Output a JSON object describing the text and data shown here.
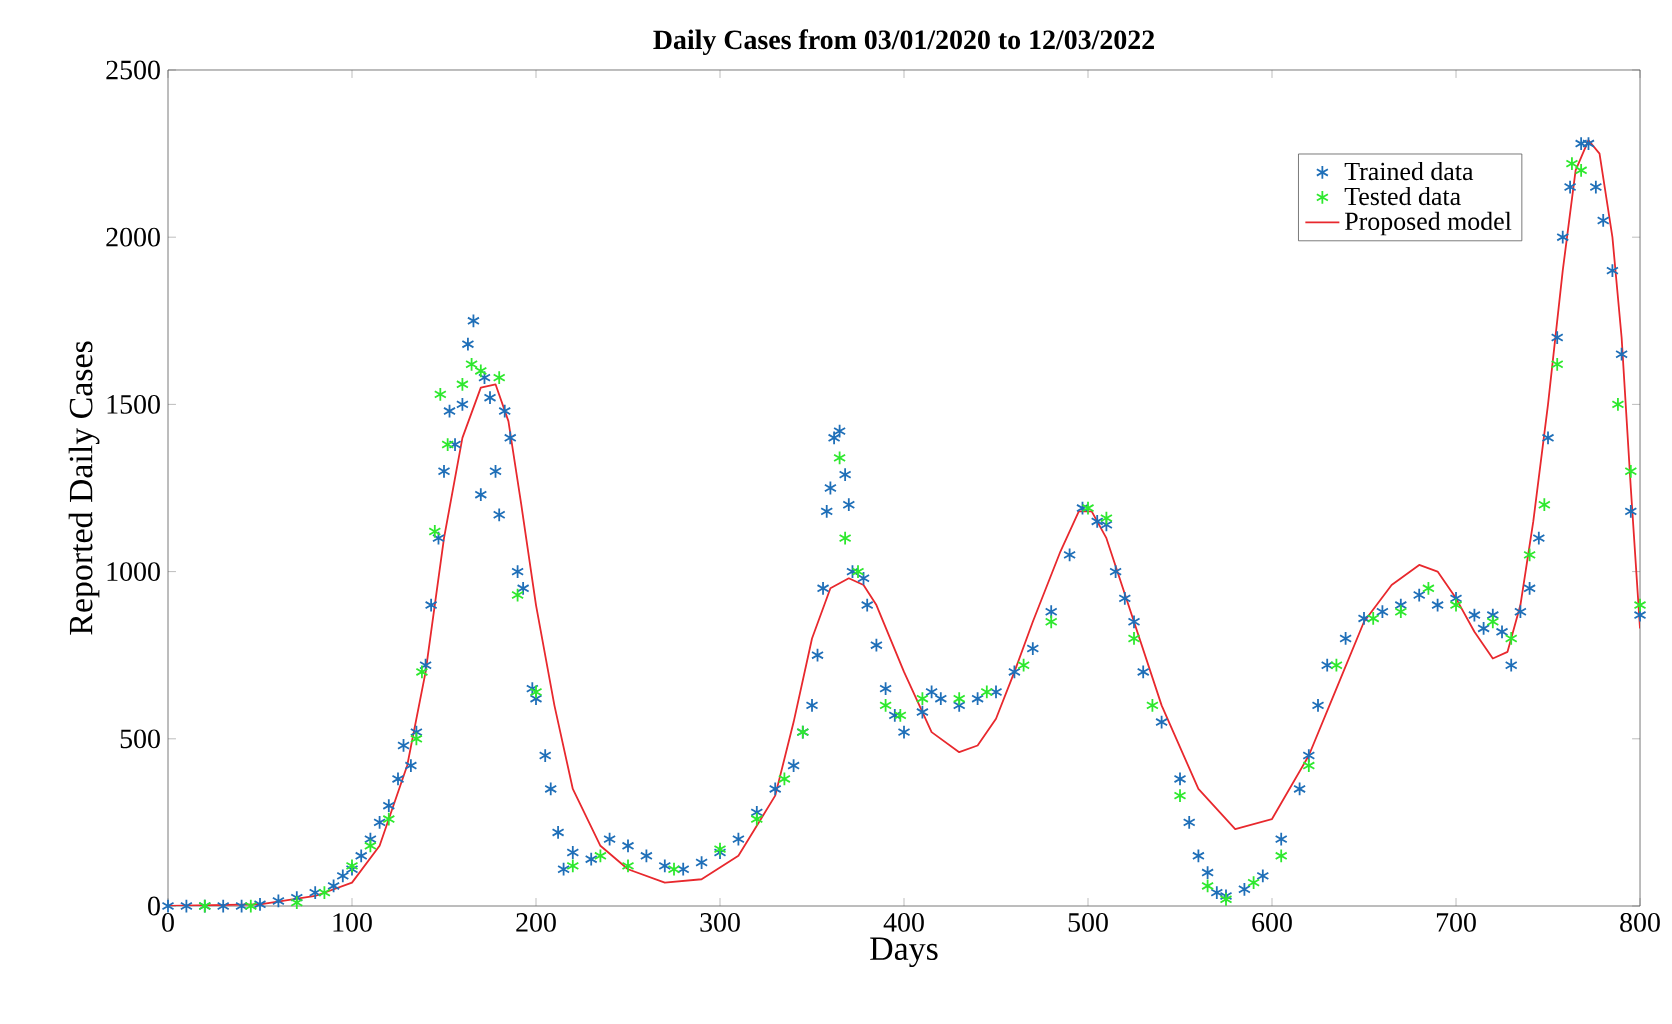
{
  "chart_data": {
    "type": "scatter",
    "title": "Daily Cases from 03/01/2020 to 12/03/2022",
    "xlabel": "Days",
    "ylabel": "Reported Daily Cases",
    "xlim": [
      0,
      800
    ],
    "ylim": [
      0,
      2500
    ],
    "xticks": [
      0,
      100,
      200,
      300,
      400,
      500,
      600,
      700,
      800
    ],
    "yticks": [
      0,
      500,
      1000,
      1500,
      2000,
      2500
    ],
    "grid": false,
    "legend": "top right",
    "series": [
      {
        "name": "Trained data",
        "marker": "cross",
        "color": "#1f6fb8",
        "x": [
          0,
          10,
          20,
          30,
          40,
          50,
          60,
          70,
          80,
          90,
          95,
          100,
          105,
          110,
          115,
          120,
          125,
          128,
          132,
          135,
          140,
          143,
          147,
          150,
          153,
          156,
          160,
          163,
          166,
          170,
          172,
          175,
          178,
          180,
          183,
          186,
          190,
          193,
          198,
          200,
          205,
          208,
          212,
          215,
          220,
          230,
          240,
          250,
          260,
          270,
          280,
          290,
          300,
          310,
          320,
          330,
          340,
          345,
          350,
          353,
          356,
          358,
          360,
          362,
          365,
          368,
          370,
          372,
          378,
          380,
          385,
          390,
          395,
          400,
          410,
          415,
          420,
          430,
          440,
          450,
          460,
          470,
          480,
          490,
          497,
          505,
          510,
          515,
          520,
          525,
          530,
          540,
          550,
          555,
          560,
          565,
          570,
          575,
          585,
          595,
          605,
          615,
          620,
          625,
          630,
          640,
          650,
          660,
          670,
          680,
          690,
          700,
          710,
          715,
          720,
          725,
          730,
          735,
          740,
          745,
          750,
          755,
          758,
          762,
          768,
          772,
          776,
          780,
          785,
          790,
          795,
          800
        ],
        "values": [
          0,
          0,
          0,
          0,
          0,
          5,
          15,
          25,
          40,
          60,
          90,
          110,
          150,
          200,
          250,
          300,
          380,
          480,
          420,
          520,
          720,
          900,
          1100,
          1300,
          1480,
          1380,
          1500,
          1680,
          1750,
          1230,
          1580,
          1520,
          1300,
          1170,
          1480,
          1400,
          1000,
          950,
          650,
          620,
          450,
          350,
          220,
          110,
          160,
          140,
          200,
          180,
          150,
          120,
          110,
          130,
          160,
          200,
          280,
          350,
          420,
          520,
          600,
          750,
          950,
          1180,
          1250,
          1400,
          1420,
          1290,
          1200,
          1000,
          980,
          900,
          780,
          650,
          570,
          520,
          580,
          640,
          620,
          600,
          620,
          640,
          700,
          770,
          880,
          1050,
          1190,
          1150,
          1140,
          1000,
          920,
          850,
          700,
          550,
          380,
          250,
          150,
          100,
          40,
          30,
          50,
          90,
          200,
          350,
          450,
          600,
          720,
          800,
          860,
          880,
          900,
          930,
          900,
          920,
          870,
          830,
          870,
          820,
          720,
          880,
          950,
          1100,
          1400,
          1700,
          2000,
          2150,
          2280,
          2280,
          2150,
          2050,
          1900,
          1650,
          1180,
          870
        ]
      },
      {
        "name": "Tested data",
        "marker": "cross",
        "color": "#2ee82e",
        "x": [
          20,
          45,
          70,
          85,
          100,
          110,
          120,
          135,
          138,
          145,
          148,
          152,
          160,
          165,
          170,
          180,
          190,
          200,
          220,
          235,
          250,
          275,
          300,
          320,
          335,
          345,
          365,
          368,
          375,
          390,
          398,
          410,
          430,
          445,
          465,
          480,
          500,
          510,
          525,
          535,
          550,
          565,
          575,
          590,
          605,
          620,
          635,
          655,
          670,
          685,
          700,
          720,
          730,
          740,
          748,
          755,
          763,
          768,
          788,
          795,
          800
        ],
        "values": [
          0,
          0,
          10,
          40,
          120,
          180,
          260,
          500,
          700,
          1120,
          1530,
          1380,
          1560,
          1620,
          1600,
          1580,
          930,
          640,
          120,
          150,
          120,
          110,
          170,
          260,
          380,
          520,
          1340,
          1100,
          1000,
          600,
          570,
          620,
          620,
          640,
          720,
          850,
          1190,
          1160,
          800,
          600,
          330,
          60,
          20,
          70,
          150,
          420,
          720,
          860,
          880,
          950,
          900,
          850,
          800,
          1050,
          1200,
          1620,
          2220,
          2200,
          1500,
          1300,
          900
        ]
      },
      {
        "name": "Proposed model",
        "type": "line",
        "marker": "none",
        "line_style": "solid",
        "color": "#e8282d",
        "x": [
          0,
          50,
          80,
          100,
          115,
          130,
          140,
          150,
          160,
          170,
          178,
          185,
          192,
          200,
          210,
          220,
          235,
          250,
          270,
          290,
          310,
          330,
          340,
          350,
          360,
          370,
          378,
          385,
          400,
          415,
          430,
          440,
          450,
          460,
          470,
          485,
          495,
          502,
          510,
          525,
          540,
          560,
          580,
          600,
          620,
          635,
          650,
          665,
          680,
          690,
          700,
          710,
          720,
          728,
          735,
          742,
          750,
          758,
          765,
          772,
          778,
          785,
          790,
          795,
          800
        ],
        "values": [
          0,
          5,
          30,
          70,
          180,
          420,
          700,
          1100,
          1400,
          1550,
          1560,
          1450,
          1200,
          900,
          600,
          350,
          180,
          110,
          70,
          80,
          150,
          330,
          550,
          800,
          950,
          980,
          960,
          900,
          700,
          520,
          460,
          480,
          560,
          700,
          850,
          1060,
          1180,
          1180,
          1100,
          850,
          600,
          350,
          230,
          260,
          450,
          650,
          850,
          960,
          1020,
          1000,
          920,
          820,
          740,
          760,
          900,
          1150,
          1500,
          1900,
          2200,
          2290,
          2250,
          2000,
          1700,
          1250,
          830
        ]
      }
    ]
  }
}
